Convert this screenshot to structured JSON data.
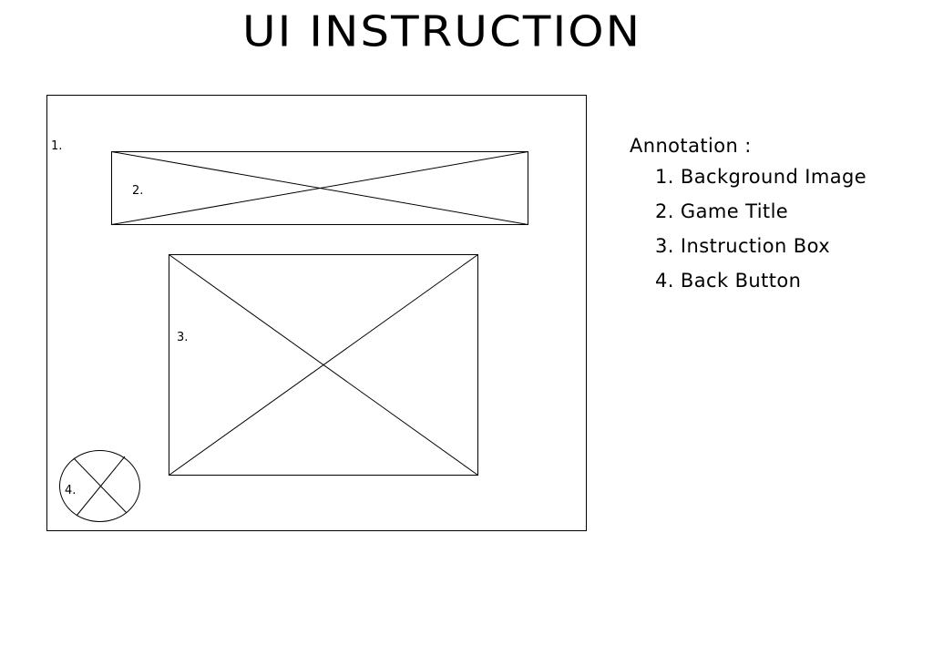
{
  "page_title": "UI INSTRUCTION",
  "wireframe": {
    "markers": [
      {
        "id": "background-image",
        "label": "1."
      },
      {
        "id": "game-title",
        "label": "2."
      },
      {
        "id": "instruction-box",
        "label": "3."
      },
      {
        "id": "back-button",
        "label": "4."
      }
    ]
  },
  "annotation": {
    "heading": "Annotation :",
    "items": [
      {
        "number": "1.",
        "text": "Background Image"
      },
      {
        "number": "2.",
        "text": "Game Title"
      },
      {
        "number": "3.",
        "text": "Instruction Box"
      },
      {
        "number": "4.",
        "text": "Back Button"
      }
    ]
  },
  "colors": {
    "stroke": "#000000",
    "background": "#ffffff"
  }
}
